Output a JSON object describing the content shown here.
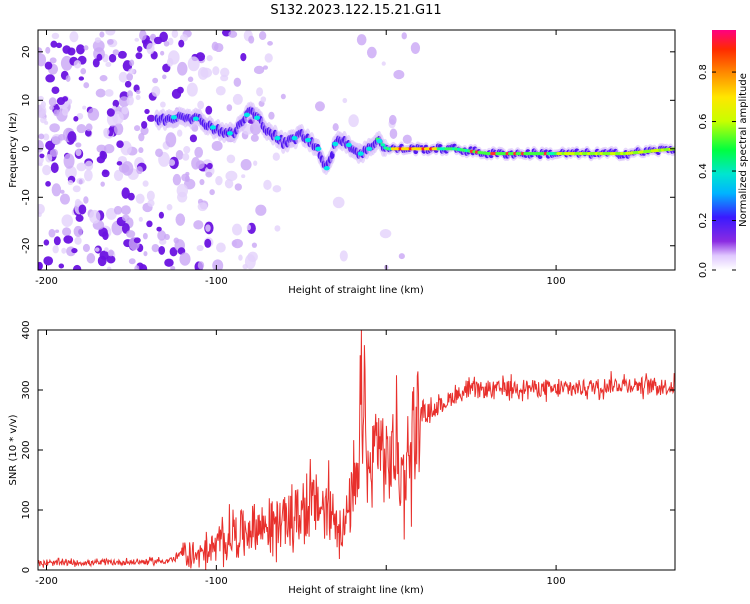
{
  "title": "S132.2023.122.15.21.G11",
  "colorbar": {
    "label": "Normalized spectral amplitude",
    "ticks": [
      "0.0",
      "0.2",
      "0.4",
      "0.6",
      "0.8"
    ],
    "tick_values": [
      0.0,
      0.2,
      0.4,
      0.6,
      0.8
    ],
    "range": [
      0,
      0.97
    ]
  },
  "chart_data": [
    {
      "type": "heatmap",
      "xlabel": "Height of straight line (km)",
      "ylabel": "Frequency (Hz)",
      "xlim": [
        -205,
        170
      ],
      "ylim": [
        -25,
        24.5
      ],
      "xticks": [
        -200,
        -100,
        0,
        100
      ],
      "xtick_labels": [
        "-200",
        "-100",
        "",
        "100"
      ],
      "yticks": [
        -20,
        -10,
        0,
        10,
        20
      ],
      "ytick_labels": [
        "-20",
        "-10",
        "0",
        "10",
        "20"
      ],
      "ridge": {
        "x": [
          -130,
          -120,
          -110,
          -100,
          -90,
          -80,
          -70,
          -60,
          -50,
          -40,
          -35,
          -30,
          -25,
          -20,
          -15,
          -10,
          -5,
          0,
          10,
          20,
          40,
          60,
          80,
          100,
          120,
          140,
          170
        ],
        "y": [
          6,
          7,
          6,
          4,
          3,
          8,
          4,
          1,
          3,
          0,
          -4,
          1,
          2,
          0,
          -1,
          0,
          2,
          0,
          0,
          0,
          0,
          -1,
          -1,
          -1,
          -1,
          -1,
          0
        ]
      }
    },
    {
      "type": "line",
      "xlabel": "Height of straight line (km)",
      "ylabel": "SNR (10 * v/v)",
      "xlim": [
        -205,
        170
      ],
      "ylim": [
        0,
        400
      ],
      "xticks": [
        -200,
        -100,
        0,
        100
      ],
      "xtick_labels": [
        "-200",
        "-100",
        "",
        "100"
      ],
      "yticks": [
        0,
        100,
        200,
        300,
        400
      ],
      "ytick_labels": [
        "0",
        "100",
        "200",
        "300",
        "400"
      ],
      "series": [
        {
          "color": "#e8302c",
          "x": [
            -205,
            -190,
            -170,
            -150,
            -130,
            -125,
            -120,
            -115,
            -110,
            -100,
            -90,
            -80,
            -70,
            -60,
            -50,
            -40,
            -30,
            -25,
            -20,
            -16,
            -14,
            -12,
            -10,
            -5,
            0,
            5,
            10,
            15,
            20,
            30,
            40,
            50,
            60,
            80,
            100,
            120,
            140,
            170
          ],
          "y": [
            10,
            12,
            12,
            13,
            15,
            18,
            30,
            20,
            25,
            40,
            60,
            70,
            75,
            80,
            95,
            110,
            90,
            70,
            120,
            140,
            380,
            200,
            150,
            230,
            170,
            200,
            150,
            230,
            260,
            270,
            290,
            300,
            300,
            305,
            300,
            305,
            310,
            305
          ]
        }
      ]
    }
  ]
}
